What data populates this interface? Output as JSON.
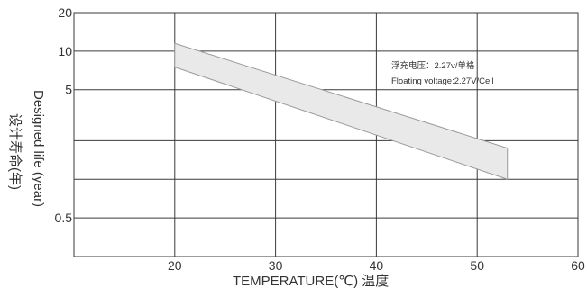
{
  "chart_data": {
    "type": "area",
    "title": "",
    "xlabel": "TEMPERATURE(℃)  温度",
    "ylabel_en": "Designed life (year)",
    "ylabel_cn": "设计寿命(年)",
    "y_scale": "log",
    "ylim": [
      0.25,
      20
    ],
    "xlim": [
      10,
      60
    ],
    "x_ticks": [
      20,
      30,
      40,
      50,
      60
    ],
    "x_tick_labels": [
      "20",
      "30",
      "40",
      "50",
      "60"
    ],
    "y_ticks": [
      20,
      10,
      5,
      0.5
    ],
    "y_tick_labels": [
      "20",
      "10",
      "5",
      "0.5"
    ],
    "grid": true,
    "series": [
      {
        "upper": [
          [
            20,
            11.5
          ],
          [
            53,
            1.75
          ]
        ],
        "lower": [
          [
            20,
            7.5
          ],
          [
            53,
            1.0
          ]
        ],
        "fill": "#e9e9e9",
        "stroke": "#9a9a9a"
      }
    ],
    "annotations": [
      "浮充电压：2.27v/单格",
      "Floating voltage:2.27V/Cell"
    ]
  }
}
